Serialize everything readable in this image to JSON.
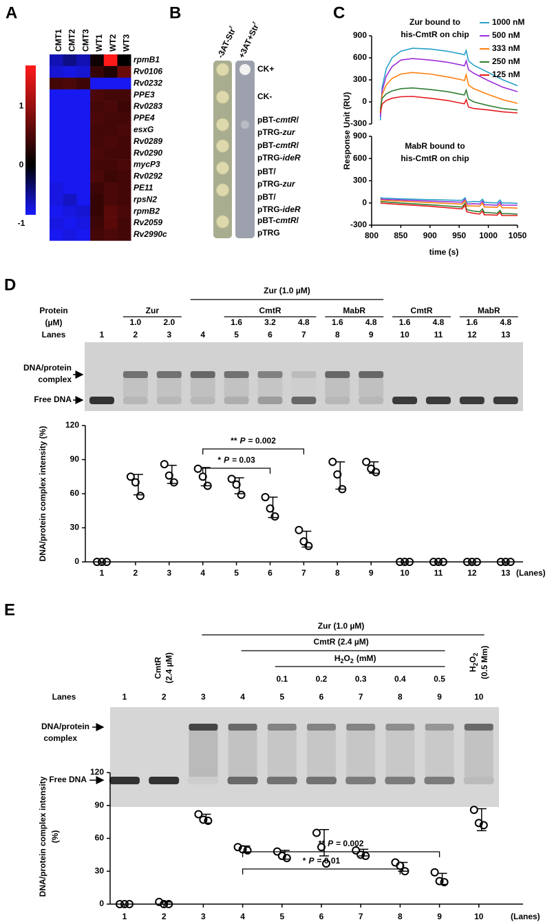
{
  "panels": [
    "A",
    "B",
    "C",
    "D",
    "E"
  ],
  "panel_B": {
    "headers": [
      {
        "text": "-3AT-Str",
        "sup": "r"
      },
      {
        "text": "+3AT+Str",
        "sup": "r"
      }
    ],
    "rows": [
      [
        [
          {
            "text": "CK+",
            "italic": false
          }
        ]
      ],
      [
        [
          {
            "text": "CK-",
            "italic": false
          }
        ]
      ],
      [
        [
          {
            "text": "pBT-",
            "italic": false
          },
          {
            "text": "cmtR",
            "italic": true
          },
          {
            "text": "/",
            "italic": false
          }
        ],
        [
          {
            "text": "pTRG-",
            "italic": false
          },
          {
            "text": "zur",
            "italic": true
          }
        ]
      ],
      [
        [
          {
            "text": "pBT-",
            "italic": false
          },
          {
            "text": "cmtR",
            "italic": true
          },
          {
            "text": "/",
            "italic": false
          }
        ],
        [
          {
            "text": "pTRG-",
            "italic": false
          },
          {
            "text": "ideR",
            "italic": true
          }
        ]
      ],
      [
        [
          {
            "text": "pBT/",
            "italic": false
          }
        ],
        [
          {
            "text": "pTRG-",
            "italic": false
          },
          {
            "text": "zur",
            "italic": true
          }
        ]
      ],
      [
        [
          {
            "text": "pBT/",
            "italic": false
          }
        ],
        [
          {
            "text": "pTRG-",
            "italic": false
          },
          {
            "text": "ideR",
            "italic": true
          }
        ]
      ],
      [
        [
          {
            "text": "pBT-",
            "italic": false
          },
          {
            "text": "cmtR",
            "italic": true
          },
          {
            "text": "/",
            "italic": false
          }
        ],
        [
          {
            "text": "pTRG",
            "italic": false
          }
        ]
      ]
    ]
  },
  "gel_D": {
    "row_labels": [
      "Protein",
      "(µM)",
      "Lanes"
    ],
    "groups": [
      "Zur (1.0 µM)",
      "Zur",
      "CmtR",
      "MabR",
      "CmtR",
      "MabR"
    ],
    "concentrations": [
      null,
      "1.0",
      "2.0",
      null,
      "1.6",
      "3.2",
      "4.8",
      "1.6",
      "4.8",
      "1.6",
      "4.8",
      "1.6",
      "4.8"
    ],
    "band_labels": {
      "complex": [
        "DNA/protein",
        "complex"
      ],
      "free": "Free DNA"
    }
  },
  "gel_E": {
    "row_label": "Lanes",
    "groups": [
      "Zur (1.0 µM)",
      "CmtR (2.4 µM)"
    ],
    "h2o2": [
      "H",
      "2",
      "O",
      "2"
    ],
    "h2o2_unit": "(mM)",
    "concentrations": [
      null,
      null,
      null,
      null,
      "0.1",
      "0.2",
      "0.3",
      "0.4",
      "0.5",
      null
    ],
    "lane2_label": [
      "CmtR",
      "(2.4 µM)"
    ],
    "lane10_label": {
      "h2o2": [
        "H",
        "2",
        "O",
        "2"
      ],
      "unit": "(0.5 Mm)"
    },
    "band_labels": {
      "complex": [
        "DNA/protein",
        "complex"
      ],
      "free": "Free DNA"
    }
  },
  "chart_data": [
    {
      "type": "heatmap",
      "columns": [
        "CMT1",
        "CMT2",
        "CMT3",
        "WT1",
        "WT2",
        "WT3"
      ],
      "rows": [
        "rpmB1",
        "Rv0106",
        "Rv0232",
        "PPE3",
        "Rv0283",
        "PPE4",
        "esxG",
        "Rv0289",
        "Rv0290",
        "mycP3",
        "Rv0292",
        "PE11",
        "rpsN2",
        "rpmB2",
        "Rv2059",
        "Rv2990c"
      ],
      "row_colors": [
        "#000000",
        "#000000",
        "#000000",
        "#e31a1c",
        "#e31a1c",
        "#e31a1c",
        "#e31a1c",
        "#e31a1c",
        "#e31a1c",
        "#e31a1c",
        "#e31a1c",
        "#000000",
        "#000000",
        "#000000",
        "#000000",
        "#000000"
      ],
      "values": [
        [
          -0.6,
          -0.45,
          -0.6,
          0.1,
          1.7,
          0.0
        ],
        [
          -0.7,
          -0.75,
          -0.7,
          0.35,
          0.2,
          0.7
        ],
        [
          0.45,
          0.5,
          0.4,
          -0.8,
          -0.8,
          -0.8
        ],
        [
          -0.8,
          -0.8,
          -0.8,
          0.5,
          0.45,
          0.45
        ],
        [
          -0.8,
          -0.8,
          -0.8,
          0.45,
          0.5,
          0.4
        ],
        [
          -0.8,
          -0.8,
          -0.8,
          0.5,
          0.45,
          0.45
        ],
        [
          -0.8,
          -0.8,
          -0.8,
          0.45,
          0.45,
          0.5
        ],
        [
          -0.8,
          -0.8,
          -0.8,
          0.45,
          0.5,
          0.45
        ],
        [
          -0.8,
          -0.8,
          -0.8,
          0.5,
          0.45,
          0.45
        ],
        [
          -0.8,
          -0.8,
          -0.8,
          0.45,
          0.45,
          0.5
        ],
        [
          -0.8,
          -0.8,
          -0.8,
          0.5,
          0.4,
          0.45
        ],
        [
          -0.75,
          -0.8,
          -0.8,
          0.4,
          0.5,
          0.45
        ],
        [
          -0.75,
          -0.65,
          -0.8,
          0.35,
          0.5,
          0.45
        ],
        [
          -0.8,
          -0.75,
          -0.7,
          0.35,
          0.6,
          0.5
        ],
        [
          -0.75,
          -0.8,
          -0.75,
          0.4,
          0.6,
          0.45
        ],
        [
          -0.8,
          -0.75,
          -0.8,
          0.45,
          0.5,
          0.45
        ]
      ],
      "colors": [
        "#1a1aff",
        "#000000",
        "#ff1a1a"
      ],
      "clim": [
        -0.85,
        1.7
      ],
      "colorbar_ticks": [
        1,
        0,
        -1
      ]
    },
    {
      "type": "line",
      "title": [
        "Zur bound to",
        "his-CmtR on chip"
      ],
      "ylabel": "Response Unit (RU)",
      "x": [
        815,
        818,
        825,
        835,
        850,
        870,
        900,
        930,
        955,
        959,
        962,
        966,
        975,
        1000,
        1025,
        1050
      ],
      "xlim": [
        800,
        1050
      ],
      "ylim": [
        -300,
        900
      ],
      "yticks": [
        -300,
        0,
        300,
        600,
        900
      ],
      "series": [
        {
          "name": "1000 nM",
          "color": "#26a0c8",
          "values": [
            -250,
            200,
            450,
            600,
            690,
            730,
            720,
            690,
            650,
            640,
            700,
            560,
            500,
            400,
            300,
            220
          ]
        },
        {
          "name": "500 nM",
          "color": "#9b30d9",
          "values": [
            -200,
            150,
            350,
            480,
            570,
            590,
            570,
            540,
            500,
            490,
            560,
            440,
            390,
            290,
            200,
            140
          ]
        },
        {
          "name": "333 nM",
          "color": "#ff7f0e",
          "values": [
            -150,
            100,
            230,
            320,
            380,
            400,
            380,
            340,
            300,
            290,
            370,
            230,
            180,
            100,
            30,
            -20
          ]
        },
        {
          "name": "250 nM",
          "color": "#2e7d32",
          "values": [
            -100,
            50,
            110,
            150,
            180,
            190,
            170,
            140,
            100,
            95,
            160,
            40,
            0,
            -50,
            -90,
            -110
          ]
        },
        {
          "name": "125 nM",
          "color": "#e41a1c",
          "values": [
            -150,
            -30,
            20,
            50,
            70,
            75,
            50,
            20,
            -20,
            -25,
            30,
            -70,
            -90,
            -110,
            -135,
            -150
          ]
        }
      ]
    },
    {
      "type": "line",
      "title": [
        "MabR bound to",
        "his-CmtR on chip"
      ],
      "xlabel": "time (s)",
      "x": [
        815,
        820,
        850,
        900,
        955,
        960,
        963,
        975,
        985,
        990,
        993,
        1000,
        1015,
        1020,
        1023,
        1035,
        1050
      ],
      "xlim": [
        800,
        1050
      ],
      "xticks": [
        800,
        850,
        900,
        950,
        1000,
        1050
      ],
      "ylim": [
        -300,
        900
      ],
      "yticks": [
        -300,
        0,
        300,
        600,
        900
      ],
      "series": [
        {
          "color": "#26a0c8",
          "values": [
            70,
            65,
            55,
            45,
            35,
            70,
            10,
            20,
            15,
            50,
            10,
            5,
            0,
            40,
            0,
            0,
            -5
          ]
        },
        {
          "color": "#9b30d9",
          "values": [
            55,
            50,
            40,
            25,
            10,
            50,
            -15,
            -10,
            -15,
            25,
            -25,
            -25,
            -30,
            10,
            -30,
            -30,
            -30
          ]
        },
        {
          "color": "#ff7f0e",
          "values": [
            40,
            35,
            25,
            5,
            -15,
            30,
            -40,
            -40,
            -45,
            0,
            -55,
            -55,
            -60,
            -20,
            -65,
            -65,
            -70
          ]
        },
        {
          "color": "#2e7d32",
          "values": [
            20,
            15,
            0,
            -25,
            -55,
            -5,
            -90,
            -110,
            -120,
            -80,
            -130,
            -130,
            -140,
            -100,
            -145,
            -145,
            -150
          ]
        },
        {
          "color": "#e41a1c",
          "values": [
            0,
            -5,
            -20,
            -45,
            -80,
            -30,
            -120,
            -140,
            -150,
            -110,
            -160,
            -160,
            -165,
            -125,
            -170,
            -170,
            -170
          ]
        }
      ]
    },
    {
      "type": "dot",
      "ylabel": [
        "DNA/protein complex intensity (%)"
      ],
      "xlabel": "(Lanes)",
      "categories": [
        "1",
        "2",
        "3",
        "4",
        "5",
        "6",
        "7",
        "8",
        "9",
        "10",
        "11",
        "12",
        "13"
      ],
      "values": [
        [
          0,
          0,
          0
        ],
        [
          75,
          70,
          58
        ],
        [
          86,
          76,
          70
        ],
        [
          82,
          75,
          67
        ],
        [
          73,
          68,
          59
        ],
        [
          57,
          47,
          40
        ],
        [
          28,
          18,
          14
        ],
        [
          88,
          77,
          64
        ],
        [
          88,
          82,
          79
        ],
        [
          0,
          0,
          0
        ],
        [
          0,
          0,
          0
        ],
        [
          0,
          0,
          0
        ],
        [
          0,
          0,
          0
        ]
      ],
      "means": [
        0,
        68,
        77,
        75,
        67,
        48,
        20,
        76,
        83,
        0,
        0,
        0,
        0
      ],
      "errors": [
        0,
        9,
        8,
        8,
        7,
        9,
        7,
        12,
        5,
        0,
        0,
        0,
        0
      ],
      "ylim": [
        0,
        120
      ],
      "yticks": [
        0,
        30,
        60,
        90,
        120
      ],
      "annotations": [
        {
          "stars": "**",
          "p": "P",
          "value": "= 0.002"
        },
        {
          "stars": "*",
          "p": "P",
          "value": "= 0.03"
        }
      ]
    },
    {
      "type": "dot",
      "ylabel": [
        "DNA/protein complex intensity",
        "(%)"
      ],
      "xlabel": "(Lanes)",
      "categories": [
        "1",
        "2",
        "3",
        "4",
        "5",
        "6",
        "7",
        "8",
        "9",
        "10"
      ],
      "values": [
        [
          0,
          0,
          0
        ],
        [
          2,
          0,
          0
        ],
        [
          82,
          77,
          76
        ],
        [
          52,
          50,
          49
        ],
        [
          48,
          44,
          42
        ],
        [
          65,
          52,
          37
        ],
        [
          49,
          45,
          44
        ],
        [
          38,
          35,
          30
        ],
        [
          29,
          21,
          20
        ],
        [
          86,
          74,
          72
        ]
      ],
      "means": [
        0,
        1,
        78,
        50,
        45,
        56,
        47,
        34,
        23,
        77
      ],
      "errors": [
        0,
        1,
        4,
        3,
        4,
        12,
        3,
        4,
        5,
        10
      ],
      "ylim": [
        0,
        120
      ],
      "yticks": [
        0,
        30,
        60,
        90,
        120
      ],
      "annotations": [
        {
          "stars": "**",
          "p": "P",
          "value": "= 0.002"
        },
        {
          "stars": "*",
          "p": "P",
          "value": "= 0.01"
        }
      ]
    }
  ]
}
